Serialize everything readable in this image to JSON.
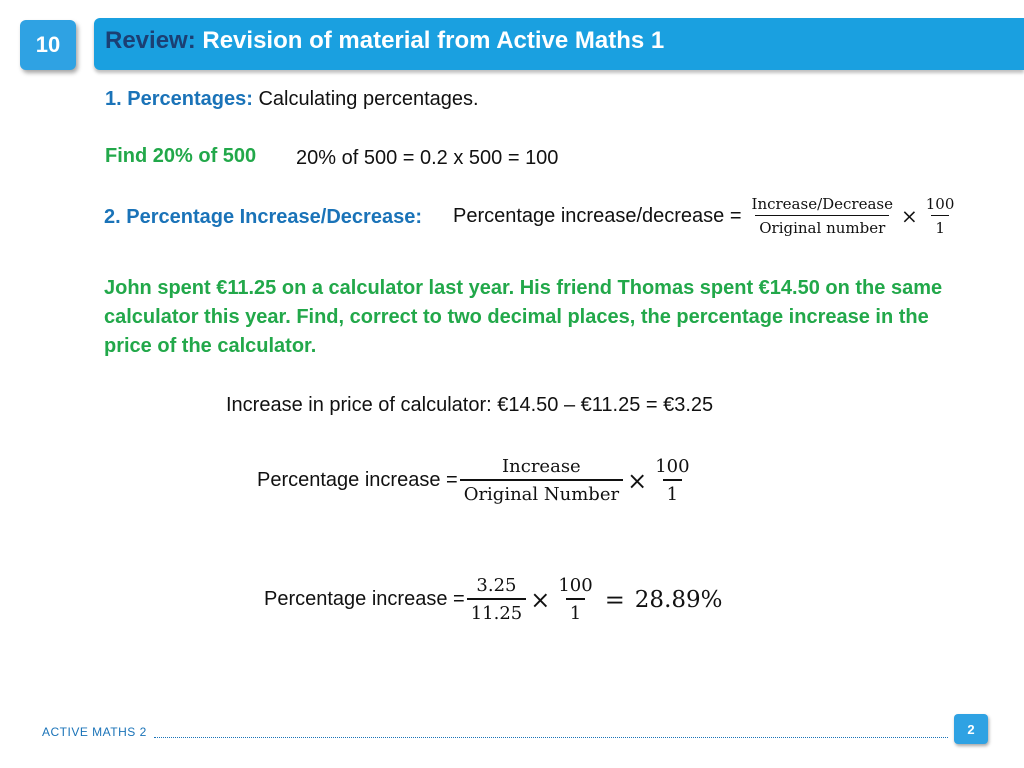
{
  "header": {
    "chapter_number": "10",
    "title_prefix": "Review:",
    "title_rest": " Revision of material from Active Maths 1"
  },
  "section1": {
    "number": "1.",
    "heading": "Percentages",
    "colon": ":",
    "description": " Calculating percentages."
  },
  "example1": {
    "prompt": "Find 20% of 500",
    "solution": "20% of 500 = 0.2 x 500 = 100"
  },
  "section2": {
    "heading": "2. Percentage Increase/Decrease:",
    "formula_label": "Percentage  increase/decrease =",
    "fraction_numerator": "Increase/Decrease",
    "fraction_denominator": "Original number",
    "times": "×",
    "hundred_numerator": "100",
    "hundred_denominator": "1"
  },
  "problem": {
    "text": "John spent €11.25 on a calculator last year. His friend Thomas spent €14.50 on the same calculator this year. Find, correct to two decimal places, the percentage increase in the price of the calculator."
  },
  "solution": {
    "increase_line": "Increase in price of calculator: €14.50 – €11.25 = €3.25",
    "formula_label": "Percentage increase =",
    "formula_numerator": "Increase",
    "formula_denominator": "Original Number",
    "times": "×",
    "hundred_numerator": "100",
    "hundred_denominator": "1",
    "calc_label": "Percentage increase =",
    "calc_numerator": "3.25",
    "calc_denominator": "11.25",
    "calc_times": "×",
    "calc_hundred_numerator": "100",
    "calc_hundred_denominator": "1",
    "equals": "=",
    "result": "28.89%"
  },
  "footer": {
    "book_label": "ACTIVE MATHS  2",
    "page_number": "2"
  },
  "colors": {
    "header_blue": "#1aa0e0",
    "badge_blue": "#2fa2e3",
    "heading_blue": "#1a73b8",
    "title_dark_blue": "#1b3f73",
    "example_green": "#22a84a"
  }
}
